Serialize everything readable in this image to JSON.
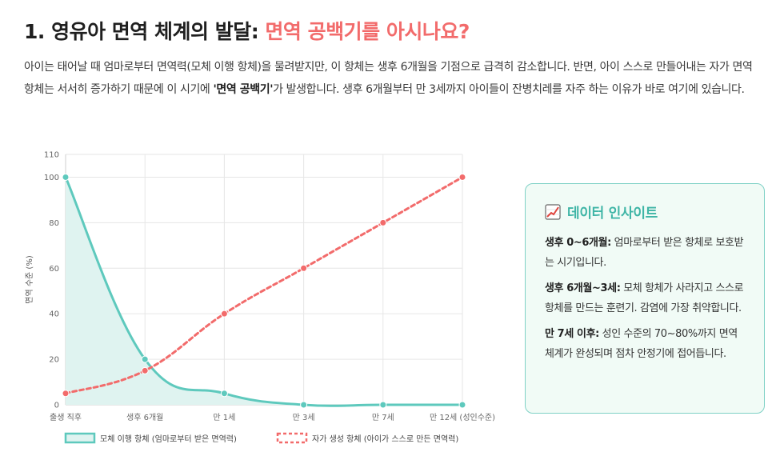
{
  "title": {
    "prefix": "1. 영유아 면역 체계의 발달: ",
    "accent": "면역 공백기를 아시나요?"
  },
  "intro": {
    "part1": "아이는 태어날 때 엄마로부터 면역력(모체 이행 항체)을 물려받지만, 이 항체는 생후 6개월을 기점으로 급격히 감소합니다. 반면, 아이 스스로 만들어내는 자가 면역 항체는 서서히 증가하기 때문에 이 시기에 ",
    "bold": "'면역 공백기'",
    "part2": "가 발생합니다. 생후 6개월부터 만 3세까지 아이들이 잔병치레를 자주 하는 이유가 바로 여기에 있습니다."
  },
  "insight": {
    "icon": "chart-increasing-icon",
    "title": "데이터 인사이트",
    "items": [
      {
        "label": "생후 0~6개월:",
        "text": " 엄마로부터 받은 항체로 보호받는 시기입니다."
      },
      {
        "label": "생후 6개월~3세:",
        "text": " 모체 항체가 사라지고 스스로 항체를 만드는 훈련기. 감염에 가장 취약합니다."
      },
      {
        "label": "만 7세 이후:",
        "text": " 성인 수준의 70~80%까지 면역 체계가 완성되며 점차 안정기에 접어듭니다."
      }
    ]
  },
  "chart_data": {
    "type": "line",
    "categories": [
      "출생 직후",
      "생후 6개월",
      "만 1세",
      "만 3세",
      "만 7세",
      "만 12세 (성인수준)"
    ],
    "series": [
      {
        "name": "모체 이행 항체 (엄마로부터 받은 면역력)",
        "values": [
          100,
          20,
          5,
          0,
          0,
          0
        ],
        "color": "#5ec9bd",
        "fill": "#dff3f0",
        "style": "solid"
      },
      {
        "name": "자가 생성 항체 (아이가 스스로 만든 면역력)",
        "values": [
          5,
          15,
          40,
          60,
          80,
          100
        ],
        "color": "#f26b6b",
        "style": "dashed"
      }
    ],
    "ylabel": "면역 수준 (%)",
    "xlabel": "",
    "ylim": [
      0,
      110
    ],
    "yticks": [
      0,
      20,
      40,
      60,
      80,
      100,
      110
    ],
    "grid": true,
    "legend": "bottom"
  }
}
